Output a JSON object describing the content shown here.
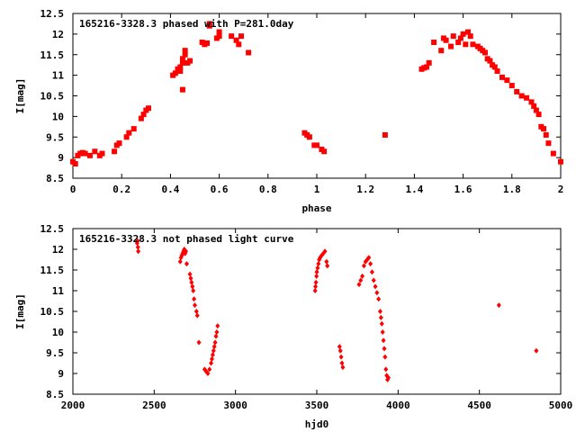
{
  "chart_data": [
    {
      "type": "scatter",
      "title": "165216-3328.3 phased with P=281.0day",
      "xlabel": "phase",
      "ylabel": "I[mag]",
      "xlim": [
        0,
        2
      ],
      "ylim": [
        12.5,
        8.5
      ],
      "y_reversed": true,
      "grid": false,
      "marker_color": "#ff0000",
      "xticks": [
        "0",
        "0.2",
        "0.4",
        "0.6",
        "0.8",
        "1",
        "1.2",
        "1.4",
        "1.6",
        "1.8",
        "2"
      ],
      "yticks": [
        "8.5",
        "9",
        "9.5",
        "10",
        "10.5",
        "11",
        "11.5",
        "12",
        "12.5"
      ],
      "series": [
        {
          "points": [
            [
              0.0,
              8.9
            ],
            [
              0.01,
              8.85
            ],
            [
              0.02,
              9.05
            ],
            [
              0.03,
              9.1
            ],
            [
              0.04,
              9.12
            ],
            [
              0.05,
              9.1
            ],
            [
              0.07,
              9.05
            ],
            [
              0.09,
              9.15
            ],
            [
              0.11,
              9.05
            ],
            [
              0.12,
              9.1
            ],
            [
              0.17,
              9.15
            ],
            [
              0.18,
              9.3
            ],
            [
              0.19,
              9.35
            ],
            [
              0.22,
              9.5
            ],
            [
              0.23,
              9.6
            ],
            [
              0.25,
              9.7
            ],
            [
              0.28,
              9.95
            ],
            [
              0.29,
              10.05
            ],
            [
              0.3,
              10.15
            ],
            [
              0.31,
              10.2
            ],
            [
              0.41,
              11.0
            ],
            [
              0.42,
              11.05
            ],
            [
              0.43,
              11.15
            ],
            [
              0.44,
              11.1
            ],
            [
              0.44,
              11.2
            ],
            [
              0.45,
              11.3
            ],
            [
              0.45,
              11.4
            ],
            [
              0.46,
              11.5
            ],
            [
              0.46,
              11.6
            ],
            [
              0.47,
              11.3
            ],
            [
              0.48,
              11.35
            ],
            [
              0.45,
              10.65
            ],
            [
              0.53,
              11.8
            ],
            [
              0.54,
              11.75
            ],
            [
              0.55,
              11.78
            ],
            [
              0.56,
              12.2
            ],
            [
              0.56,
              12.25
            ],
            [
              0.59,
              11.9
            ],
            [
              0.6,
              11.95
            ],
            [
              0.6,
              12.05
            ],
            [
              0.65,
              11.95
            ],
            [
              0.67,
              11.85
            ],
            [
              0.68,
              11.75
            ],
            [
              0.69,
              11.95
            ],
            [
              0.72,
              11.55
            ],
            [
              0.95,
              9.6
            ],
            [
              0.96,
              9.55
            ],
            [
              0.97,
              9.5
            ],
            [
              0.99,
              9.3
            ],
            [
              1.0,
              9.3
            ],
            [
              1.02,
              9.2
            ],
            [
              1.03,
              9.15
            ],
            [
              1.28,
              9.55
            ],
            [
              1.43,
              11.15
            ],
            [
              1.44,
              11.18
            ],
            [
              1.45,
              11.2
            ],
            [
              1.46,
              11.3
            ],
            [
              1.48,
              11.8
            ],
            [
              1.51,
              11.6
            ],
            [
              1.52,
              11.9
            ],
            [
              1.53,
              11.85
            ],
            [
              1.55,
              11.7
            ],
            [
              1.56,
              11.95
            ],
            [
              1.58,
              11.8
            ],
            [
              1.59,
              11.9
            ],
            [
              1.6,
              12.0
            ],
            [
              1.61,
              11.75
            ],
            [
              1.62,
              12.05
            ],
            [
              1.63,
              11.95
            ],
            [
              1.64,
              11.75
            ],
            [
              1.66,
              11.7
            ],
            [
              1.67,
              11.65
            ],
            [
              1.68,
              11.6
            ],
            [
              1.69,
              11.55
            ],
            [
              1.7,
              11.4
            ],
            [
              1.71,
              11.35
            ],
            [
              1.72,
              11.25
            ],
            [
              1.73,
              11.2
            ],
            [
              1.74,
              11.1
            ],
            [
              1.76,
              10.95
            ],
            [
              1.78,
              10.88
            ],
            [
              1.8,
              10.75
            ],
            [
              1.82,
              10.6
            ],
            [
              1.84,
              10.5
            ],
            [
              1.86,
              10.45
            ],
            [
              1.88,
              10.35
            ],
            [
              1.89,
              10.25
            ],
            [
              1.9,
              10.15
            ],
            [
              1.91,
              10.05
            ],
            [
              1.92,
              9.75
            ],
            [
              1.93,
              9.7
            ],
            [
              1.94,
              9.55
            ],
            [
              1.95,
              9.35
            ],
            [
              1.97,
              9.1
            ],
            [
              2.0,
              8.9
            ]
          ]
        }
      ]
    },
    {
      "type": "scatter",
      "title": "165216-3328.3 not phased light curve",
      "xlabel": "hjd0",
      "ylabel": "I[mag]",
      "xlim": [
        2000,
        5000
      ],
      "ylim": [
        12.5,
        8.5
      ],
      "y_reversed": true,
      "grid": false,
      "marker_color": "#ff0000",
      "xticks": [
        "2000",
        "2500",
        "3000",
        "3500",
        "4000",
        "4500",
        "5000"
      ],
      "yticks": [
        "8.5",
        "9",
        "9.5",
        "10",
        "10.5",
        "11",
        "11.5",
        "12",
        "12.5"
      ],
      "series": [
        {
          "points": [
            [
              2395,
              12.15
            ],
            [
              2398,
              12.2
            ],
            [
              2400,
              12.05
            ],
            [
              2402,
              11.95
            ],
            [
              2660,
              11.7
            ],
            [
              2665,
              11.8
            ],
            [
              2670,
              11.85
            ],
            [
              2675,
              11.9
            ],
            [
              2680,
              11.95
            ],
            [
              2685,
              12.0
            ],
            [
              2690,
              11.9
            ],
            [
              2695,
              11.95
            ],
            [
              2700,
              11.65
            ],
            [
              2720,
              11.4
            ],
            [
              2725,
              11.3
            ],
            [
              2730,
              11.2
            ],
            [
              2735,
              11.1
            ],
            [
              2740,
              11.0
            ],
            [
              2745,
              10.8
            ],
            [
              2750,
              10.65
            ],
            [
              2760,
              10.5
            ],
            [
              2765,
              10.4
            ],
            [
              2775,
              9.75
            ],
            [
              2810,
              9.1
            ],
            [
              2820,
              9.05
            ],
            [
              2830,
              9.0
            ],
            [
              2840,
              9.1
            ],
            [
              2850,
              9.25
            ],
            [
              2855,
              9.35
            ],
            [
              2860,
              9.45
            ],
            [
              2865,
              9.55
            ],
            [
              2870,
              9.65
            ],
            [
              2875,
              9.75
            ],
            [
              2880,
              9.9
            ],
            [
              2885,
              10.0
            ],
            [
              2890,
              10.15
            ],
            [
              3490,
              11.0
            ],
            [
              3492,
              11.1
            ],
            [
              3495,
              11.2
            ],
            [
              3498,
              11.35
            ],
            [
              3500,
              11.45
            ],
            [
              3505,
              11.55
            ],
            [
              3510,
              11.65
            ],
            [
              3515,
              11.75
            ],
            [
              3520,
              11.8
            ],
            [
              3530,
              11.85
            ],
            [
              3540,
              11.9
            ],
            [
              3550,
              11.95
            ],
            [
              3560,
              11.7
            ],
            [
              3565,
              11.6
            ],
            [
              3640,
              9.65
            ],
            [
              3645,
              9.55
            ],
            [
              3650,
              9.4
            ],
            [
              3655,
              9.25
            ],
            [
              3660,
              9.15
            ],
            [
              3760,
              11.15
            ],
            [
              3770,
              11.25
            ],
            [
              3780,
              11.35
            ],
            [
              3790,
              11.6
            ],
            [
              3800,
              11.7
            ],
            [
              3810,
              11.75
            ],
            [
              3820,
              11.8
            ],
            [
              3830,
              11.65
            ],
            [
              3840,
              11.45
            ],
            [
              3850,
              11.25
            ],
            [
              3860,
              11.1
            ],
            [
              3870,
              10.95
            ],
            [
              3880,
              10.8
            ],
            [
              3890,
              10.5
            ],
            [
              3895,
              10.35
            ],
            [
              3900,
              10.2
            ],
            [
              3905,
              10.0
            ],
            [
              3910,
              9.8
            ],
            [
              3915,
              9.6
            ],
            [
              3920,
              9.4
            ],
            [
              3925,
              9.1
            ],
            [
              3930,
              8.95
            ],
            [
              3935,
              8.85
            ],
            [
              3940,
              8.9
            ],
            [
              4620,
              10.65
            ],
            [
              4850,
              9.55
            ]
          ]
        }
      ]
    }
  ]
}
